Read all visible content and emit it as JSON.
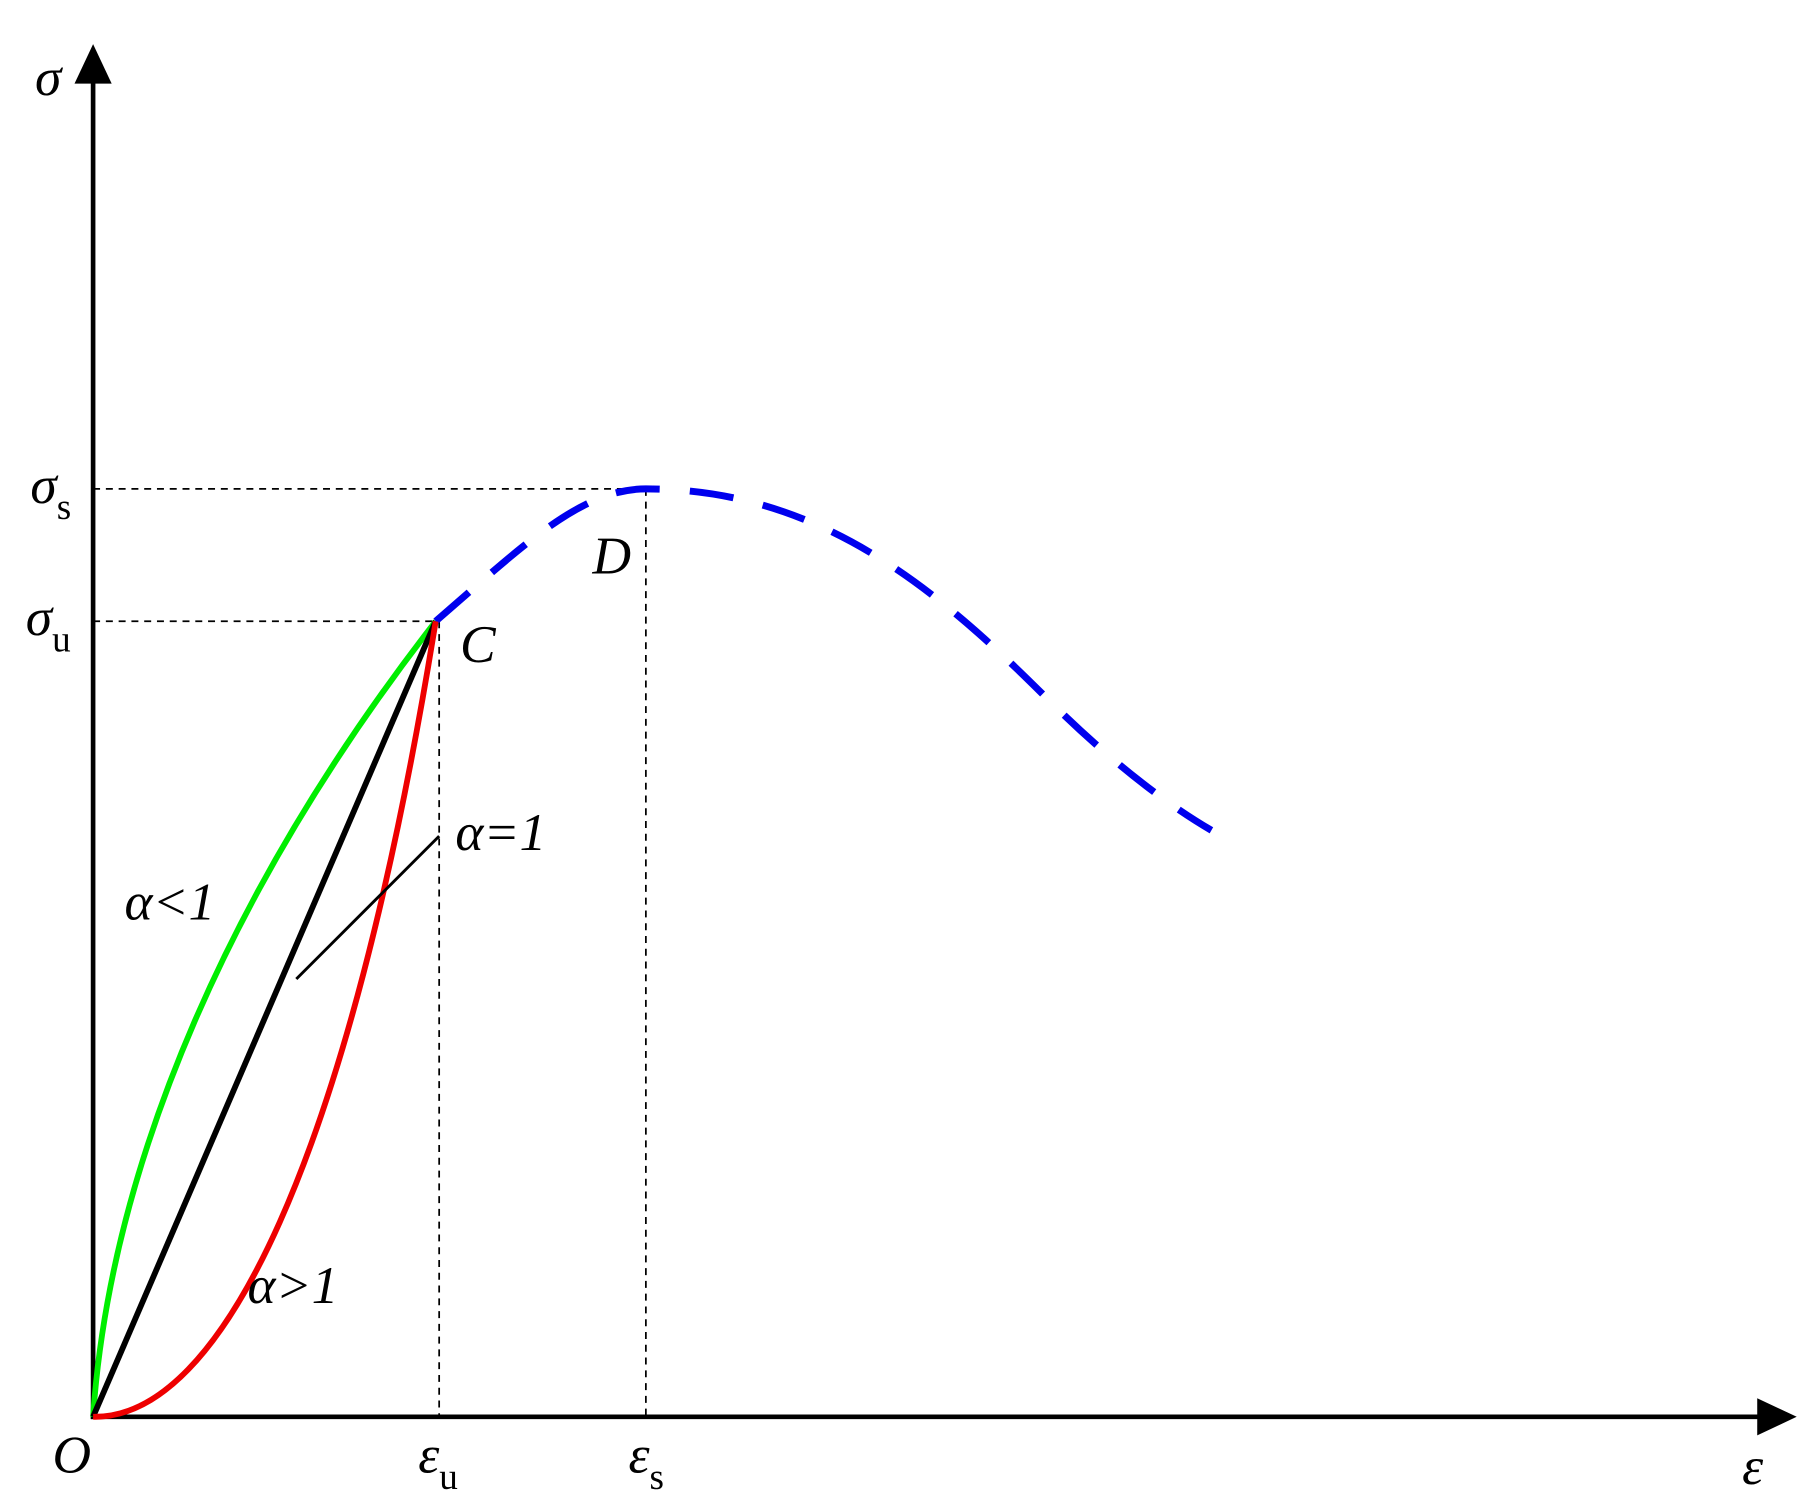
{
  "axes": {
    "y_label": "σ",
    "x_label": "ε",
    "origin": "O"
  },
  "stress_levels": [
    {
      "symbol": "σ",
      "subscript": "s"
    },
    {
      "symbol": "σ",
      "subscript": "u"
    }
  ],
  "strain_levels": [
    {
      "symbol": "ε",
      "subscript": "u"
    },
    {
      "symbol": "ε",
      "subscript": "s"
    }
  ],
  "points": [
    {
      "label": "C"
    },
    {
      "label": "D"
    }
  ],
  "curves": [
    {
      "label": "α<1"
    },
    {
      "label": "α=1"
    },
    {
      "label": "α>1"
    }
  ]
}
